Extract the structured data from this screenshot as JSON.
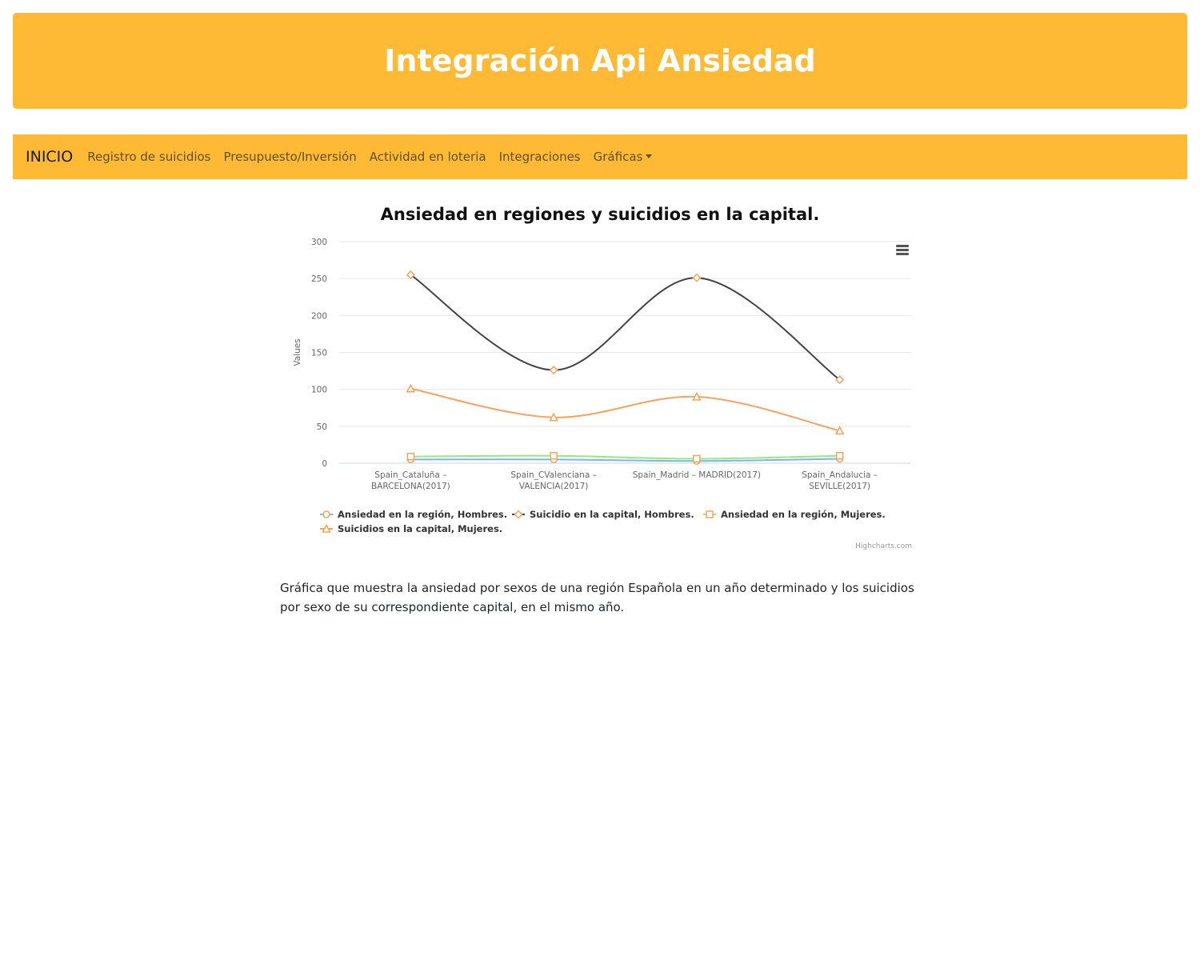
{
  "header": {
    "title": "Integración Api Ansiedad"
  },
  "navbar": {
    "brand": "INICIO",
    "links": [
      {
        "label": "Registro de suicidios"
      },
      {
        "label": "Presupuesto/Inversión"
      },
      {
        "label": "Actividad en loteria"
      },
      {
        "label": "Integraciones"
      },
      {
        "label": "Gráficas"
      }
    ],
    "color": "#ffba35"
  },
  "icons": {
    "chart_menu": "hamburger-menu-icon",
    "dropdown": "caret-down-icon"
  },
  "chart_data": {
    "type": "line",
    "title": "Ansiedad en regiones y suicidios en la capital.",
    "ylabel": "Values",
    "xlabel": "",
    "ylim": [
      0,
      300
    ],
    "yticks": [
      0,
      50,
      100,
      150,
      200,
      250,
      300
    ],
    "grid": true,
    "smooth": true,
    "legend_position": "bottom",
    "categories": [
      [
        "Spain_Cataluña –",
        "BARCELONA(2017)"
      ],
      [
        "Spain_CValenciana –",
        "VALENCIA(2017)"
      ],
      [
        "Spain_Madrid – MADRID(2017)"
      ],
      [
        "Spain_Andalucia –",
        "SEVILLE(2017)"
      ]
    ],
    "series": [
      {
        "name": "Ansiedad en la región, Hombres.",
        "values": [
          5,
          5,
          3,
          6
        ],
        "color": "#7cb5ec",
        "marker": "circle"
      },
      {
        "name": "Suicidio en la capital, Hombres.",
        "values": [
          255,
          126,
          251,
          113
        ],
        "color": "#434348",
        "marker": "diamond"
      },
      {
        "name": "Ansiedad en la región, Mujeres.",
        "values": [
          9,
          10,
          6,
          10
        ],
        "color": "#90ed7d",
        "marker": "square"
      },
      {
        "name": "Suicidios en la capital, Mujeres.",
        "values": [
          101,
          62,
          90,
          44
        ],
        "color": "#f7a35c",
        "marker": "triangle"
      }
    ],
    "marker_color": "#f7a35c",
    "credits": "Highcharts.com"
  },
  "description": "Gráfica que muestra la ansiedad por sexos de una región Española en un año determinado y los suicidios por sexo de su correspondiente capital, en el mismo año."
}
